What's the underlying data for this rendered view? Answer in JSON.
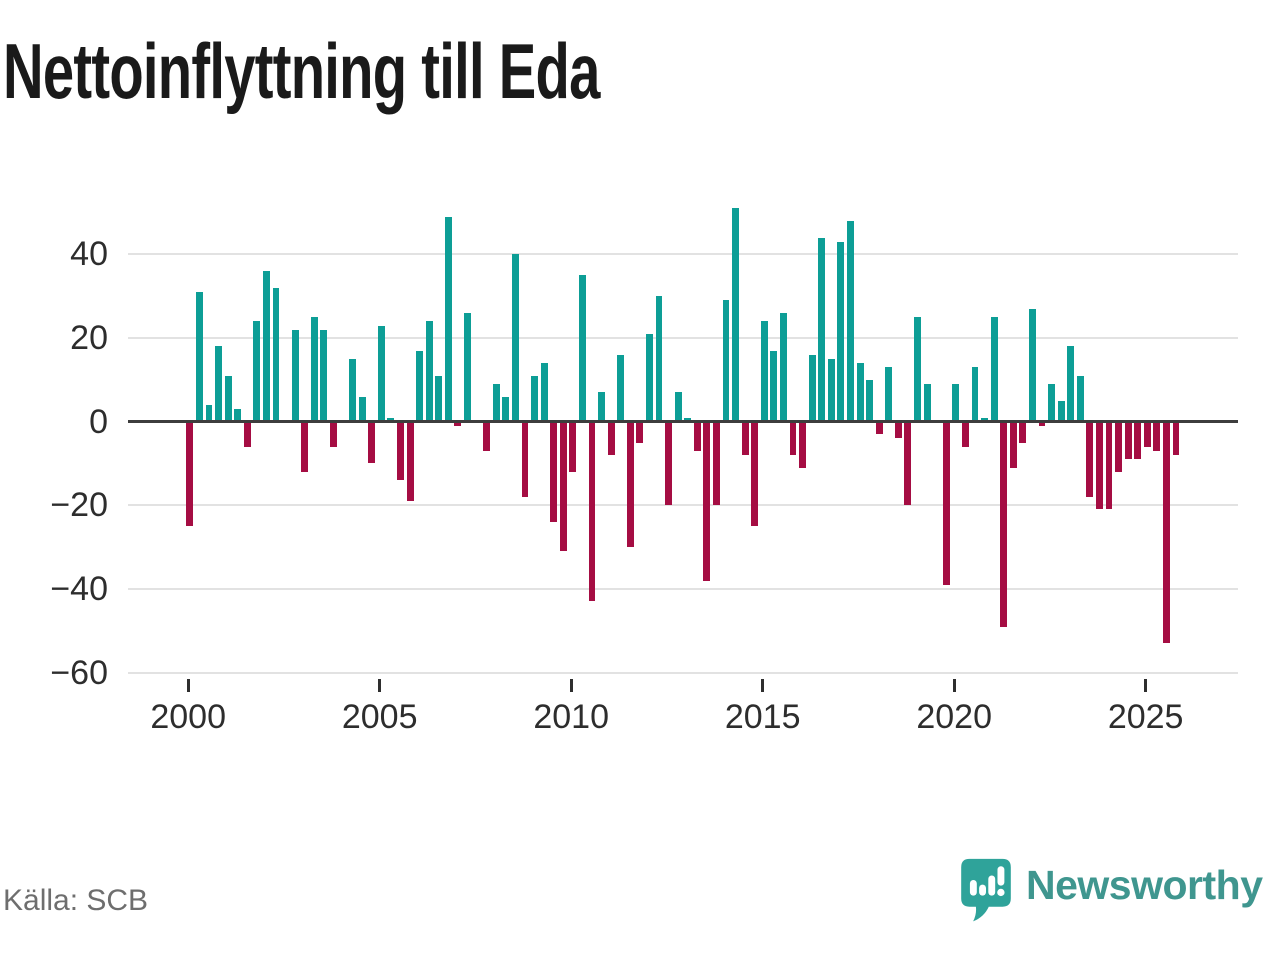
{
  "page": {
    "title": "Nettoinflyttning till Eda",
    "source_label": "Källa: SCB",
    "brand_name": "Newsworthy"
  },
  "chart_data": {
    "type": "bar",
    "title": "Nettoinflyttning till Eda",
    "periodicity": "quarterly",
    "start_period": "2000-Q1",
    "end_period": "2025-Q4",
    "series": [
      {
        "name": "Nettoinflyttning till Eda",
        "values": [
          -25,
          31,
          4,
          18,
          11,
          3,
          -6,
          24,
          36,
          32,
          0,
          22,
          -12,
          25,
          22,
          -6,
          0,
          15,
          6,
          -10,
          23,
          1,
          -14,
          -19,
          17,
          24,
          11,
          49,
          -1,
          26,
          0,
          -7,
          9,
          6,
          40,
          -18,
          11,
          14,
          -24,
          -31,
          -12,
          35,
          -43,
          7,
          -8,
          16,
          -30,
          -5,
          21,
          30,
          -20,
          7,
          1,
          -7,
          -38,
          -20,
          29,
          51,
          -8,
          -25,
          24,
          17,
          26,
          -8,
          -11,
          16,
          44,
          15,
          43,
          48,
          14,
          10,
          -3,
          13,
          -4,
          -20,
          25,
          9,
          0,
          -39,
          9,
          -6,
          13,
          1,
          25,
          -49,
          -11,
          -5,
          27,
          -1,
          9,
          5,
          18,
          11,
          -18,
          -21,
          -21,
          -12,
          -9,
          -9,
          -6,
          -7,
          -53,
          -8
        ]
      }
    ],
    "x_ticks": [
      {
        "year": 2000,
        "label": "2000"
      },
      {
        "year": 2005,
        "label": "2005"
      },
      {
        "year": 2010,
        "label": "2010"
      },
      {
        "year": 2015,
        "label": "2015"
      },
      {
        "year": 2020,
        "label": "2020"
      },
      {
        "year": 2025,
        "label": "2025"
      }
    ],
    "y_ticks": [
      40,
      20,
      0,
      -20,
      -40,
      -60
    ],
    "y_tick_labels": [
      "40",
      "20",
      "0",
      "−20",
      "−40",
      "−60"
    ],
    "ylim": [
      -60,
      55
    ],
    "grid": true,
    "legend": false,
    "colors": {
      "positive": "#0d9e96",
      "negative": "#a50d43",
      "zero_line": "#3d3d3d",
      "gridline": "#e2e2e2",
      "axis_text": "#2d2d2d"
    }
  }
}
